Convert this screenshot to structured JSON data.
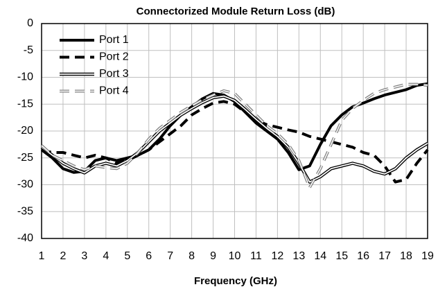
{
  "chart_data": {
    "type": "line",
    "title": "Connectorized Module Return Loss (dB)",
    "xlabel": "Frequency (GHz)",
    "x": [
      1,
      1.5,
      2,
      2.5,
      3,
      3.5,
      4,
      4.5,
      5,
      5.5,
      6,
      6.5,
      7,
      7.5,
      8,
      8.5,
      9,
      9.5,
      10,
      10.5,
      11,
      11.5,
      12,
      12.5,
      13,
      13.5,
      14,
      14.5,
      15,
      15.5,
      16,
      16.5,
      17,
      17.5,
      18,
      18.5,
      19
    ],
    "series": [
      {
        "name": "Port 1",
        "color": "#000000",
        "style": "solid",
        "values": [
          -23.5,
          -25,
          -27,
          -27.7,
          -27.5,
          -25.5,
          -25,
          -25.5,
          -25,
          -24.5,
          -23.5,
          -21.5,
          -19,
          -17,
          -15.5,
          -14,
          -13,
          -13.3,
          -14.5,
          -16.5,
          -18.5,
          -20,
          -21.5,
          -24,
          -27.2,
          -26.5,
          -22.5,
          -19,
          -17,
          -15.5,
          -14.8,
          -14,
          -13.3,
          -12.8,
          -12.3,
          -11.5,
          -11.2
        ]
      },
      {
        "name": "Port 2",
        "color": "#000000",
        "style": "dashed",
        "values": [
          -23.5,
          -24,
          -24,
          -24.5,
          -25,
          -24.5,
          -25,
          -26,
          -25.5,
          -24.5,
          -23.5,
          -22,
          -20.5,
          -19,
          -17,
          -15.8,
          -14.8,
          -14.5,
          -15,
          -16.5,
          -18,
          -18.8,
          -19.3,
          -19.8,
          -20.2,
          -21,
          -21.5,
          -22,
          -22.5,
          -23,
          -24,
          -24.5,
          -26.5,
          -29.5,
          -29,
          -26,
          -23.5
        ]
      },
      {
        "name": "Port 3",
        "color": "#000000",
        "style": "double",
        "values": [
          -23,
          -24.5,
          -26,
          -27,
          -27.8,
          -26.5,
          -26,
          -26.5,
          -25.5,
          -24,
          -22,
          -20,
          -18.5,
          -17,
          -15.8,
          -14.7,
          -13.8,
          -13.5,
          -14.3,
          -16,
          -17.8,
          -19.5,
          -21,
          -23,
          -26,
          -29.5,
          -28.5,
          -27,
          -26.5,
          -26,
          -26.5,
          -27.5,
          -28,
          -27,
          -25,
          -23.5,
          -22.3
        ]
      },
      {
        "name": "Port 4",
        "color": "#808080",
        "style": "double-dashed",
        "values": [
          -22.7,
          -24.5,
          -25.5,
          -26.5,
          -27.2,
          -26.5,
          -26.8,
          -27,
          -26,
          -24,
          -21.5,
          -19.5,
          -18,
          -16.5,
          -15.3,
          -14.2,
          -13.3,
          -12.5,
          -13,
          -15,
          -17,
          -19,
          -20.5,
          -22.5,
          -25.5,
          -30.5,
          -27,
          -22.5,
          -18,
          -15.8,
          -14.3,
          -13,
          -12.3,
          -11.8,
          -11.3,
          -11.3,
          -11.5
        ]
      }
    ],
    "xlim": [
      1,
      19
    ],
    "xticks": [
      1,
      2,
      3,
      4,
      5,
      6,
      7,
      8,
      9,
      10,
      11,
      12,
      13,
      14,
      15,
      16,
      17,
      18,
      19
    ],
    "ylim": [
      -40,
      0
    ],
    "yticks": [
      0,
      -5,
      -10,
      -15,
      -20,
      -25,
      -30,
      -35,
      -40
    ],
    "grid": true,
    "legend": "upper left"
  }
}
